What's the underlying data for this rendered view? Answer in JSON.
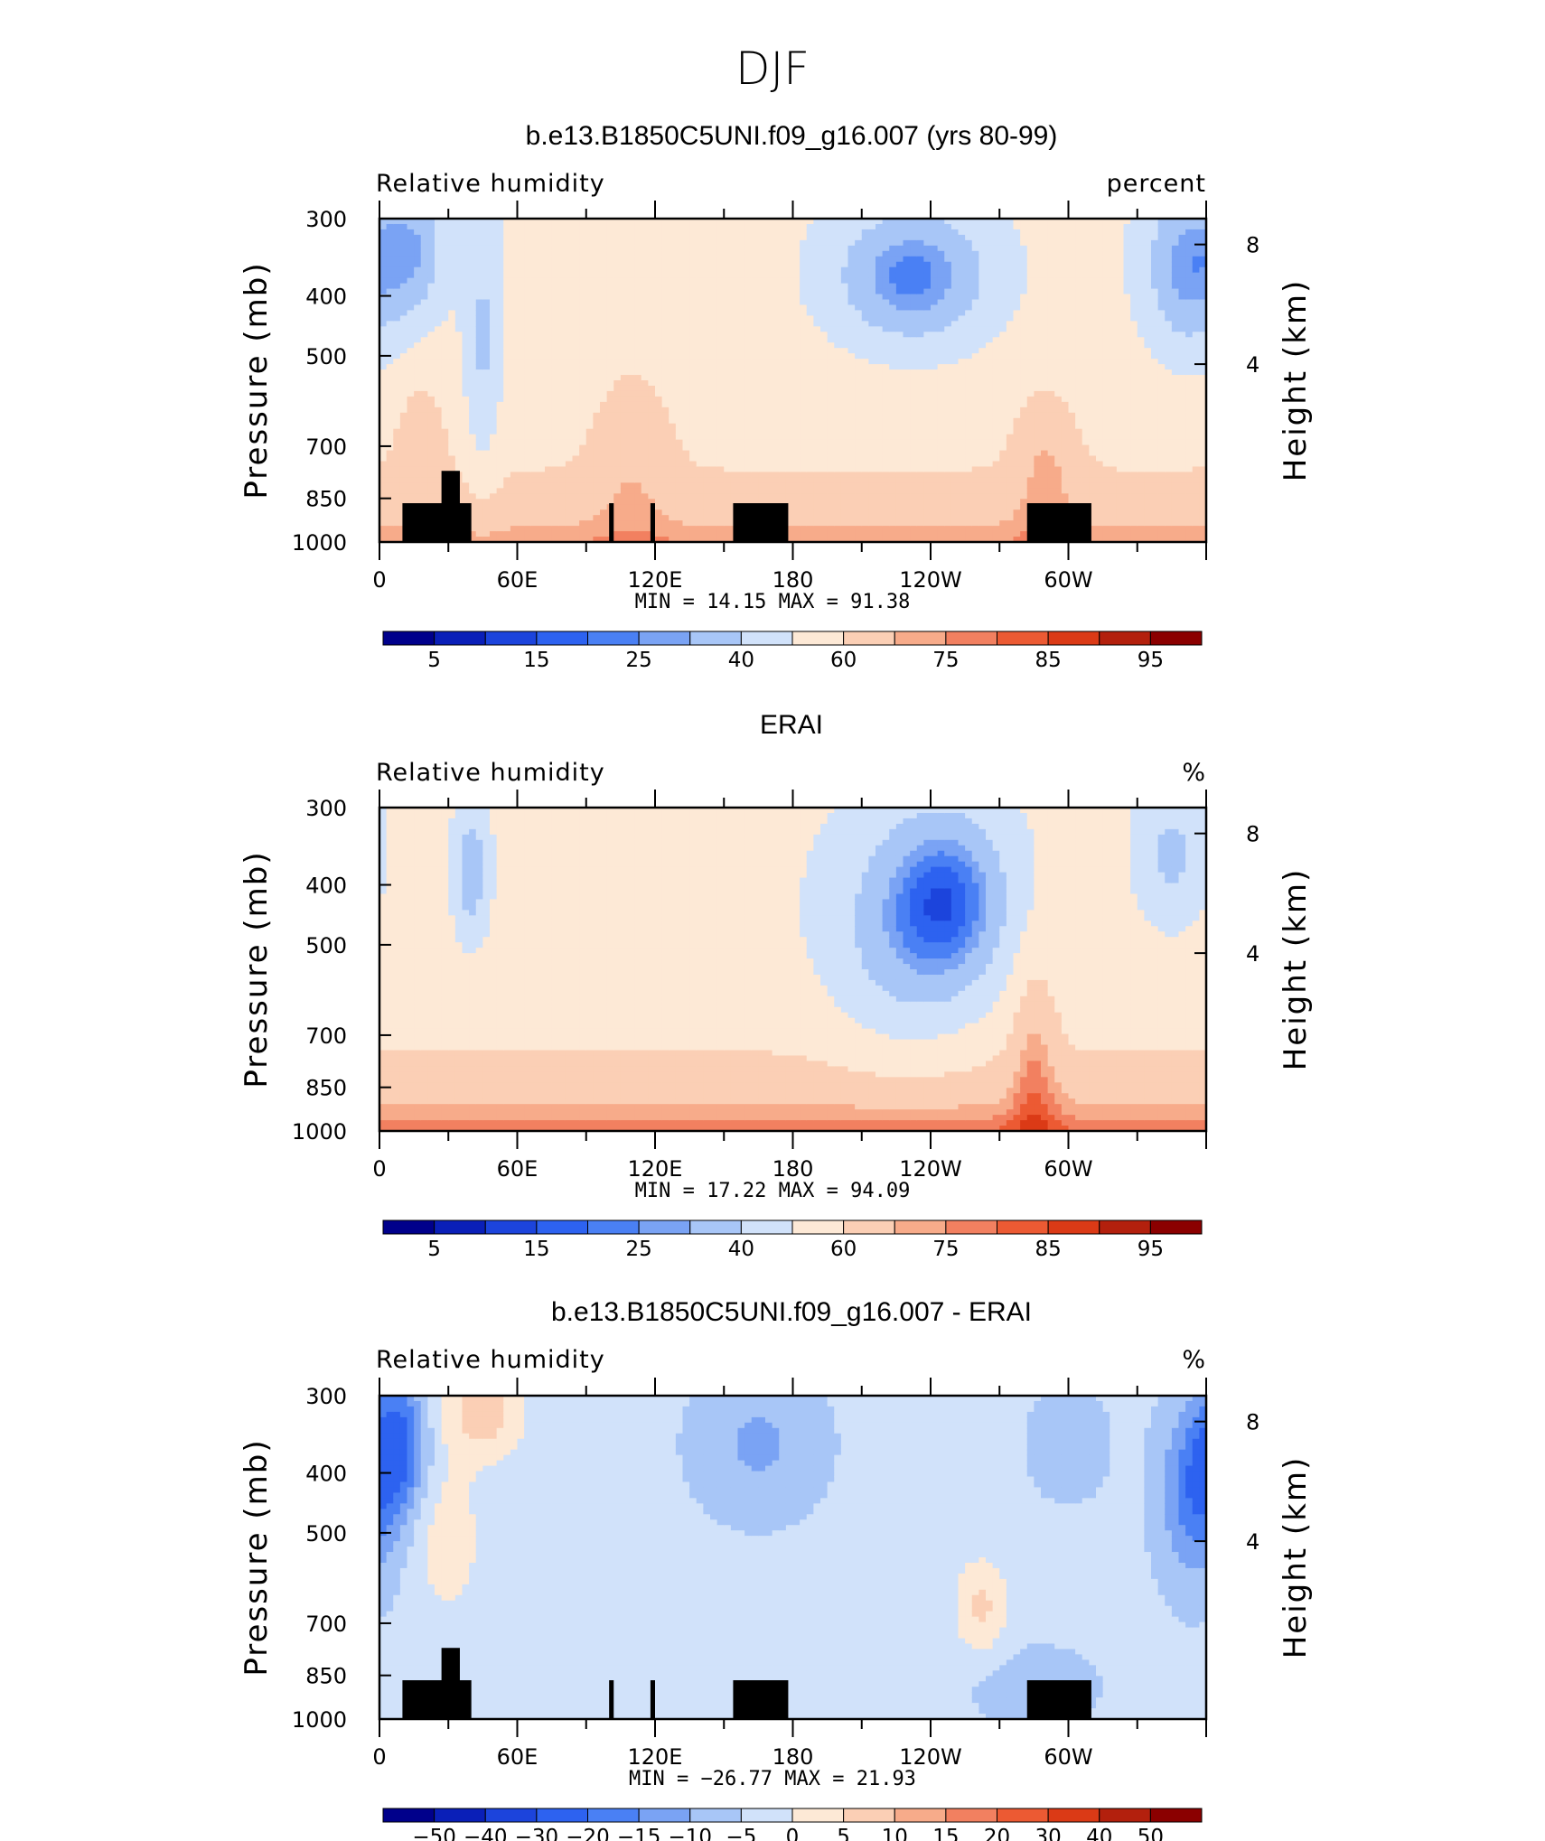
{
  "figure": {
    "season": "DJF"
  },
  "colors": {
    "panel_palette": [
      "#00008b",
      "#0a1fb8",
      "#1c44dc",
      "#2d62f0",
      "#4a80f4",
      "#7aa3f4",
      "#a8c6f7",
      "#d1e2fa",
      "#fde9d6",
      "#fbcfb5",
      "#f7ab8a",
      "#f28060",
      "#ec5a33",
      "#db3a16",
      "#b3200d",
      "#8b0000"
    ],
    "land_mask": "#000000"
  },
  "chart_data": [
    {
      "type": "heatmap",
      "title": "b.e13.B1850C5UNI.f09_g16.007 (yrs 80-99)",
      "left_label": "Relative humidity",
      "right_label": "percent",
      "ylabel": "Pressure (mb)",
      "y2label": "Height (km)",
      "x_ticks": [
        "0",
        "60E",
        "120E",
        "180",
        "120W",
        "60W"
      ],
      "y_ticks": [
        "300",
        "400",
        "500",
        "700",
        "850",
        "1000"
      ],
      "y2_ticks": [
        "8",
        "4"
      ],
      "ylim": [
        1000,
        300
      ],
      "y_scale": "log-pressure",
      "stats": {
        "min_label": "MIN =",
        "min": "14.15",
        "max_label": "MAX =",
        "max": "91.38"
      },
      "colorbar_labels": [
        "5",
        "15",
        "25",
        "40",
        "60",
        "75",
        "85",
        "95"
      ],
      "field": "model",
      "land_mask": true
    },
    {
      "type": "heatmap",
      "title": "ERAI",
      "left_label": "Relative humidity",
      "right_label": "%",
      "ylabel": "Pressure (mb)",
      "y2label": "Height (km)",
      "x_ticks": [
        "0",
        "60E",
        "120E",
        "180",
        "120W",
        "60W"
      ],
      "y_ticks": [
        "300",
        "400",
        "500",
        "700",
        "850",
        "1000"
      ],
      "y2_ticks": [
        "8",
        "4"
      ],
      "ylim": [
        1000,
        300
      ],
      "y_scale": "log-pressure",
      "stats": {
        "min_label": "MIN =",
        "min": "17.22",
        "max_label": "MAX =",
        "max": "94.09"
      },
      "colorbar_labels": [
        "5",
        "15",
        "25",
        "40",
        "60",
        "75",
        "85",
        "95"
      ],
      "field": "obs",
      "land_mask": false
    },
    {
      "type": "heatmap",
      "title": "b.e13.B1850C5UNI.f09_g16.007 - ERAI",
      "left_label": "Relative humidity",
      "right_label": "%",
      "ylabel": "Pressure (mb)",
      "y2label": "Height (km)",
      "x_ticks": [
        "0",
        "60E",
        "120E",
        "180",
        "120W",
        "60W"
      ],
      "y_ticks": [
        "300",
        "400",
        "500",
        "700",
        "850",
        "1000"
      ],
      "y2_ticks": [
        "8",
        "4"
      ],
      "ylim": [
        1000,
        300
      ],
      "y_scale": "log-pressure",
      "stats": {
        "min_label": "MIN =",
        "min": "−26.77",
        "max_label": "MAX =",
        "max": "21.93"
      },
      "colorbar_labels": [
        "−50",
        "−40",
        "−30",
        "−20",
        "−15",
        "−10",
        "−5",
        "0",
        "5",
        "10",
        "15",
        "20",
        "30",
        "40",
        "50"
      ],
      "field": "diff",
      "land_mask": true
    }
  ]
}
